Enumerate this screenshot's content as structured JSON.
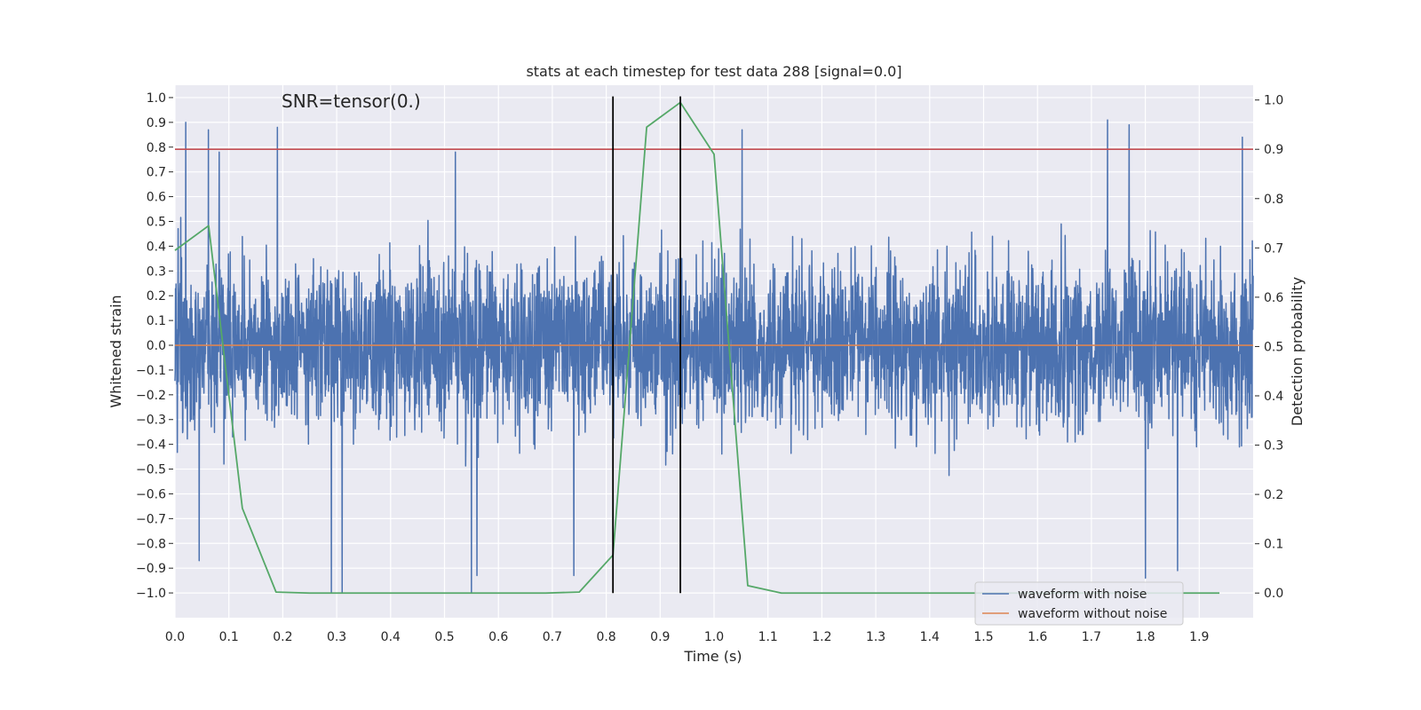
{
  "chart_data": {
    "type": "line",
    "title": "stats at each timestep for test data 288 [signal=0.0]",
    "xlabel": "Time (s)",
    "ylabel": "Whitened strain",
    "y2label": "Detection probability",
    "annotation": "SNR=tensor(0.)",
    "xlim": [
      0.0,
      2.0
    ],
    "ylim": [
      -1.1,
      1.05
    ],
    "y2lim": [
      -0.05,
      1.03
    ],
    "x_ticks": [
      0.0,
      0.1,
      0.2,
      0.3,
      0.4,
      0.5,
      0.6,
      0.7,
      0.8,
      0.9,
      1.0,
      1.1,
      1.2,
      1.3,
      1.4,
      1.5,
      1.6,
      1.7,
      1.8,
      1.9
    ],
    "x_tick_labels": [
      "0.0",
      "0.1",
      "0.2",
      "0.3",
      "0.4",
      "0.5",
      "0.6",
      "0.7",
      "0.8",
      "0.9",
      "1.0",
      "1.1",
      "1.2",
      "1.3",
      "1.4",
      "1.5",
      "1.6",
      "1.7",
      "1.8",
      "1.9"
    ],
    "y_ticks": [
      -1.0,
      -0.9,
      -0.8,
      -0.7,
      -0.6,
      -0.5,
      -0.4,
      -0.3,
      -0.2,
      -0.1,
      0.0,
      0.1,
      0.2,
      0.3,
      0.4,
      0.5,
      0.6,
      0.7,
      0.8,
      0.9,
      1.0
    ],
    "y_tick_labels": [
      "−1.0",
      "−0.9",
      "−0.8",
      "−0.7",
      "−0.6",
      "−0.5",
      "−0.4",
      "−0.3",
      "−0.2",
      "−0.1",
      "0.0",
      "0.1",
      "0.2",
      "0.3",
      "0.4",
      "0.5",
      "0.6",
      "0.7",
      "0.8",
      "0.9",
      "1.0"
    ],
    "y2_ticks": [
      0.0,
      0.1,
      0.2,
      0.3,
      0.4,
      0.5,
      0.6,
      0.7,
      0.8,
      0.9,
      1.0
    ],
    "y2_tick_labels": [
      "0.0",
      "0.1",
      "0.2",
      "0.3",
      "0.4",
      "0.5",
      "0.6",
      "0.7",
      "0.8",
      "0.9",
      "1.0"
    ],
    "grid": true,
    "legend_position": "bottom-right",
    "series": [
      {
        "name": "waveform with noise",
        "color": "#4c72b0",
        "axis": "left",
        "kind": "noise",
        "sample_rate": 2048,
        "amplitude_range": [
          -1.0,
          0.91
        ],
        "peaks": [
          {
            "x": 0.02,
            "y": 0.9
          },
          {
            "x": 0.062,
            "y": 0.87
          },
          {
            "x": 0.082,
            "y": 0.78
          },
          {
            "x": 0.19,
            "y": 0.88
          },
          {
            "x": 0.52,
            "y": 0.78
          },
          {
            "x": 1.052,
            "y": 0.87
          },
          {
            "x": 1.73,
            "y": 0.91
          },
          {
            "x": 1.77,
            "y": 0.89
          },
          {
            "x": 1.98,
            "y": 0.84
          },
          {
            "x": 0.045,
            "y": -0.87
          },
          {
            "x": 0.29,
            "y": -1.0
          },
          {
            "x": 0.31,
            "y": -1.0
          },
          {
            "x": 0.55,
            "y": -1.0
          },
          {
            "x": 0.56,
            "y": -0.93
          },
          {
            "x": 0.74,
            "y": -0.93
          },
          {
            "x": 1.8,
            "y": -0.94
          },
          {
            "x": 1.86,
            "y": -0.91
          }
        ]
      },
      {
        "name": "waveform without noise",
        "color": "#dd8452",
        "axis": "left",
        "x": [
          0.0,
          2.0
        ],
        "y": [
          0.0,
          0.0
        ]
      },
      {
        "name": "detection probability",
        "color": "#55a868",
        "axis": "right",
        "x": [
          0.0,
          0.0625,
          0.125,
          0.1875,
          0.25,
          0.3125,
          0.375,
          0.4375,
          0.5,
          0.5625,
          0.625,
          0.6875,
          0.75,
          0.8125,
          0.875,
          0.9375,
          1.0,
          1.0625,
          1.125,
          1.1875,
          1.25,
          1.3125,
          1.375,
          1.4375,
          1.5,
          1.5625,
          1.625,
          1.6875,
          1.75,
          1.8125,
          1.875,
          1.9375
        ],
        "y": [
          0.695,
          0.745,
          0.172,
          0.002,
          0.0,
          0.0,
          0.0,
          0.0,
          0.0,
          0.0,
          0.0,
          0.0,
          0.002,
          0.077,
          0.945,
          0.995,
          0.89,
          0.015,
          0.0,
          0.0,
          0.0,
          0.0,
          0.0,
          0.0,
          0.0,
          0.0,
          0.0,
          0.0,
          0.0,
          0.0,
          0.0,
          0.0
        ]
      }
    ],
    "threshold": {
      "axis": "right",
      "value": 0.9,
      "color": "#c44e52"
    },
    "vertical_markers": {
      "x": [
        0.8125,
        0.9375
      ],
      "y2_range": [
        0.0,
        1.0
      ],
      "color": "#000000"
    },
    "legend_entries": [
      {
        "label": "waveform with noise",
        "color": "#4c72b0"
      },
      {
        "label": "waveform without noise",
        "color": "#dd8452"
      }
    ]
  }
}
